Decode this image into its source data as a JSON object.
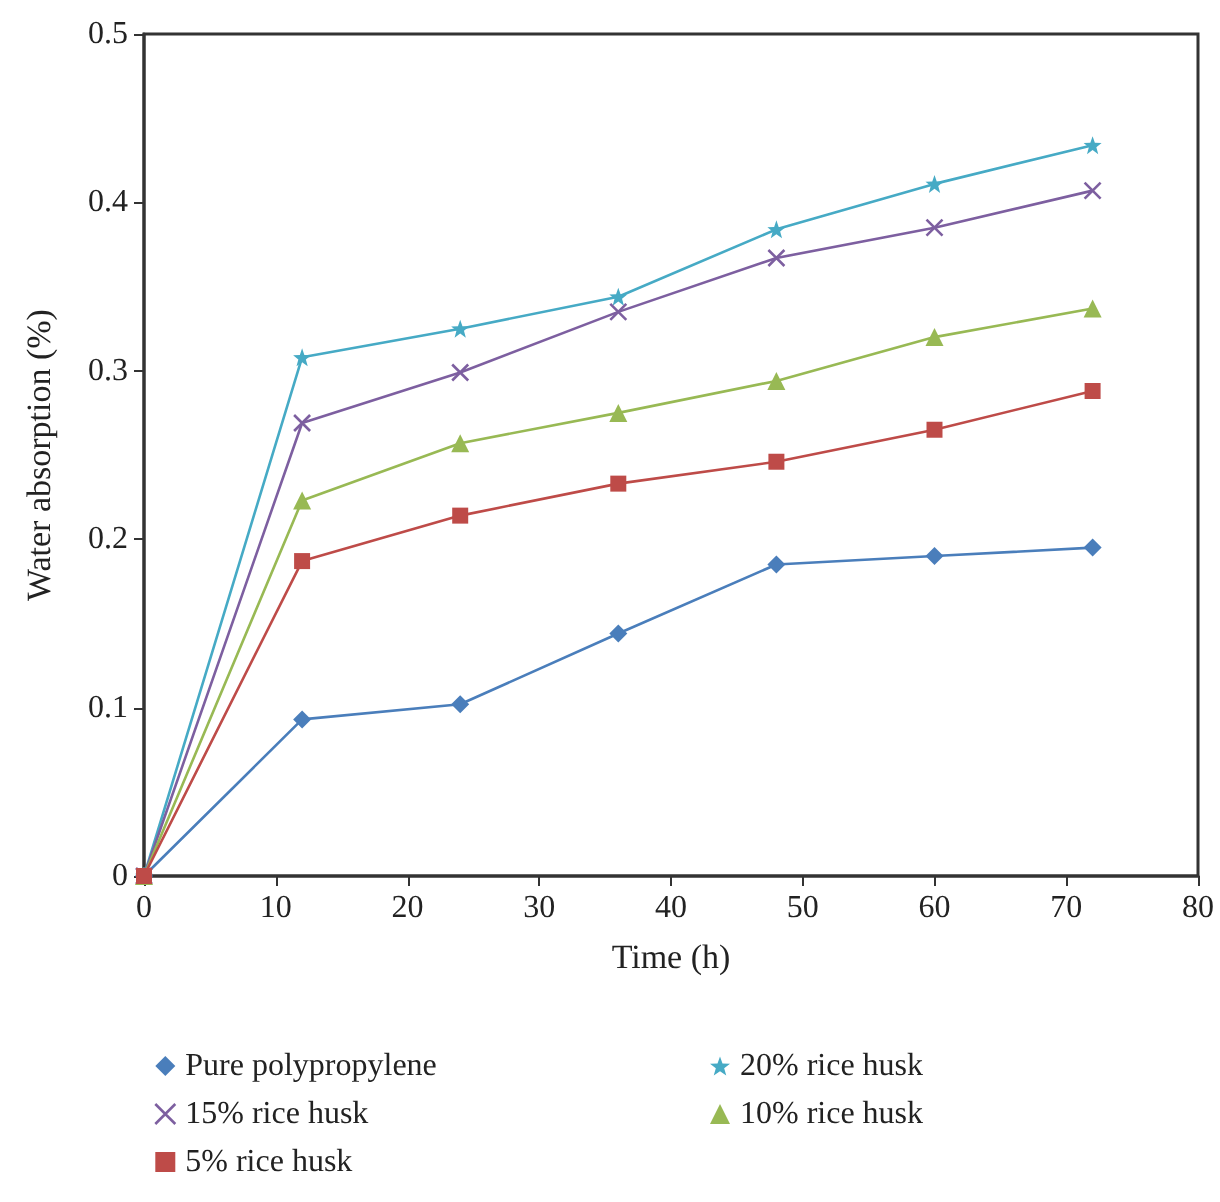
{
  "chart_data": {
    "type": "line",
    "xlabel": "Time (h)",
    "ylabel": "Water absorption (%)",
    "x": [
      0,
      12,
      24,
      36,
      48,
      60,
      72
    ],
    "xlim": [
      0,
      80
    ],
    "xticks": [
      0,
      10,
      20,
      30,
      40,
      50,
      60,
      70,
      80
    ],
    "ylim": [
      0,
      0.5
    ],
    "yticks": [
      0,
      0.1,
      0.2,
      0.3,
      0.4,
      0.5
    ],
    "grid": false,
    "legend": "bottom",
    "series": [
      {
        "name": "Pure polypropylene",
        "color": "#4a7ebb",
        "marker": "diamond",
        "values": [
          0,
          0.093,
          0.102,
          0.144,
          0.185,
          0.19,
          0.195
        ]
      },
      {
        "name": "20% rice husk",
        "color": "#46aac5",
        "marker": "star",
        "values": [
          0,
          0.308,
          0.325,
          0.344,
          0.384,
          0.411,
          0.434
        ]
      },
      {
        "name": "15% rice husk",
        "color": "#7d5fa0",
        "marker": "cross",
        "values": [
          0,
          0.269,
          0.299,
          0.335,
          0.367,
          0.385,
          0.407
        ]
      },
      {
        "name": "10% rice husk",
        "color": "#98b954",
        "marker": "triangle",
        "values": [
          0,
          0.223,
          0.257,
          0.275,
          0.294,
          0.32,
          0.337
        ]
      },
      {
        "name": "5% rice husk",
        "color": "#be4b48",
        "marker": "square",
        "values": [
          0,
          0.187,
          0.214,
          0.233,
          0.246,
          0.265,
          0.288
        ]
      }
    ]
  }
}
